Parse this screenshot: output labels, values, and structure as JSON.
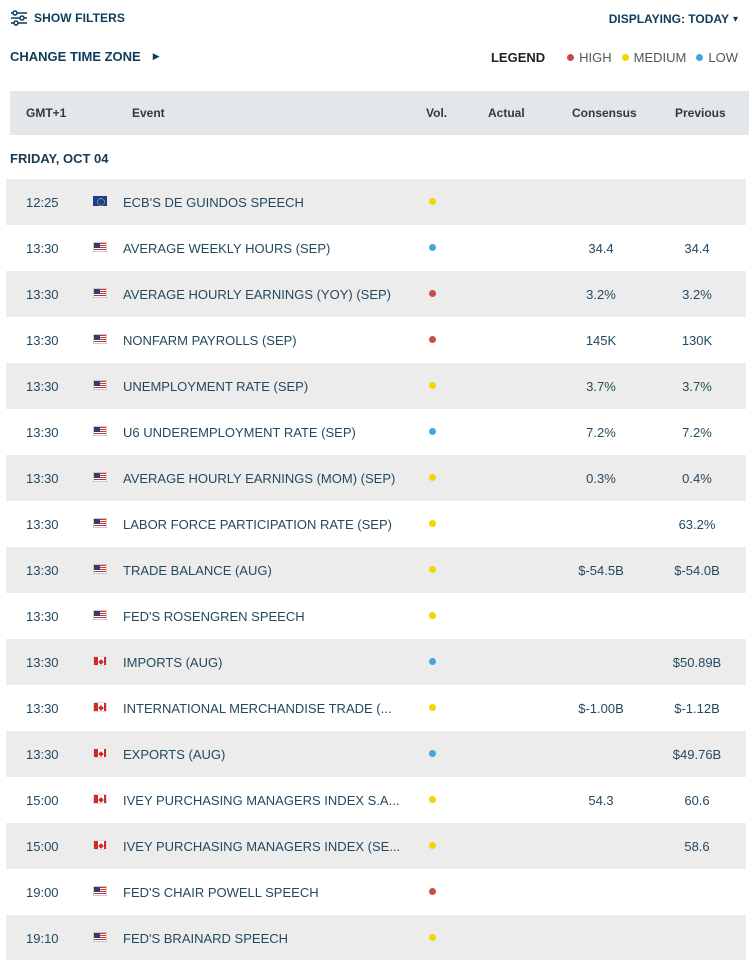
{
  "colors": {
    "high": "#c94b4b",
    "medium": "#f2d600",
    "low": "#3fa9db",
    "row_alt": "#ececec",
    "header_bg": "#e3e7ea"
  },
  "topbar": {
    "filters_icon": "sliders-icon",
    "filters_label": "SHOW FILTERS",
    "displaying_label": "DISPLAYING: TODAY",
    "displaying_icon": "chevron-down-icon"
  },
  "timezone": {
    "label": "CHANGE TIME ZONE",
    "icon": "triangle-right-icon"
  },
  "legend": {
    "title": "LEGEND",
    "high": "HIGH",
    "medium": "MEDIUM",
    "low": "LOW"
  },
  "table": {
    "headers": {
      "time": "GMT+1",
      "event": "Event",
      "vol": "Vol.",
      "actual": "Actual",
      "consensus": "Consensus",
      "previous": "Previous"
    },
    "day": "FRIDAY, OCT 04",
    "rows": [
      {
        "time": "12:25",
        "flag": "eu",
        "event": "ECB'S DE GUINDOS SPEECH",
        "vol": "medium",
        "actual": "",
        "consensus": "",
        "previous": ""
      },
      {
        "time": "13:30",
        "flag": "us",
        "event": "AVERAGE WEEKLY HOURS (SEP)",
        "vol": "low",
        "actual": "",
        "consensus": "34.4",
        "previous": "34.4"
      },
      {
        "time": "13:30",
        "flag": "us",
        "event": "AVERAGE HOURLY EARNINGS (YOY) (SEP)",
        "vol": "high",
        "actual": "",
        "consensus": "3.2%",
        "previous": "3.2%"
      },
      {
        "time": "13:30",
        "flag": "us",
        "event": "NONFARM PAYROLLS (SEP)",
        "vol": "high",
        "actual": "",
        "consensus": "145K",
        "previous": "130K"
      },
      {
        "time": "13:30",
        "flag": "us",
        "event": "UNEMPLOYMENT RATE (SEP)",
        "vol": "medium",
        "actual": "",
        "consensus": "3.7%",
        "previous": "3.7%"
      },
      {
        "time": "13:30",
        "flag": "us",
        "event": "U6 UNDEREMPLOYMENT RATE (SEP)",
        "vol": "low",
        "actual": "",
        "consensus": "7.2%",
        "previous": "7.2%"
      },
      {
        "time": "13:30",
        "flag": "us",
        "event": "AVERAGE HOURLY EARNINGS (MOM) (SEP)",
        "vol": "medium",
        "actual": "",
        "consensus": "0.3%",
        "previous": "0.4%"
      },
      {
        "time": "13:30",
        "flag": "us",
        "event": "LABOR FORCE PARTICIPATION RATE (SEP)",
        "vol": "medium",
        "actual": "",
        "consensus": "",
        "previous": "63.2%"
      },
      {
        "time": "13:30",
        "flag": "us",
        "event": "TRADE BALANCE (AUG)",
        "vol": "medium",
        "actual": "",
        "consensus": "$-54.5B",
        "previous": "$-54.0B"
      },
      {
        "time": "13:30",
        "flag": "us",
        "event": "FED'S ROSENGREN SPEECH",
        "vol": "medium",
        "actual": "",
        "consensus": "",
        "previous": ""
      },
      {
        "time": "13:30",
        "flag": "ca",
        "event": "IMPORTS (AUG)",
        "vol": "low",
        "actual": "",
        "consensus": "",
        "previous": "$50.89B"
      },
      {
        "time": "13:30",
        "flag": "ca",
        "event": "INTERNATIONAL MERCHANDISE TRADE (...",
        "vol": "medium",
        "actual": "",
        "consensus": "$-1.00B",
        "previous": "$-1.12B"
      },
      {
        "time": "13:30",
        "flag": "ca",
        "event": "EXPORTS (AUG)",
        "vol": "low",
        "actual": "",
        "consensus": "",
        "previous": "$49.76B"
      },
      {
        "time": "15:00",
        "flag": "ca",
        "event": "IVEY PURCHASING MANAGERS INDEX S.A...",
        "vol": "medium",
        "actual": "",
        "consensus": "54.3",
        "previous": "60.6"
      },
      {
        "time": "15:00",
        "flag": "ca",
        "event": "IVEY PURCHASING MANAGERS INDEX (SE...",
        "vol": "medium",
        "actual": "",
        "consensus": "",
        "previous": "58.6"
      },
      {
        "time": "19:00",
        "flag": "us",
        "event": "FED'S CHAIR POWELL SPEECH",
        "vol": "high",
        "actual": "",
        "consensus": "",
        "previous": ""
      },
      {
        "time": "19:10",
        "flag": "us",
        "event": "FED'S BRAINARD SPEECH",
        "vol": "medium",
        "actual": "",
        "consensus": "",
        "previous": ""
      }
    ]
  }
}
